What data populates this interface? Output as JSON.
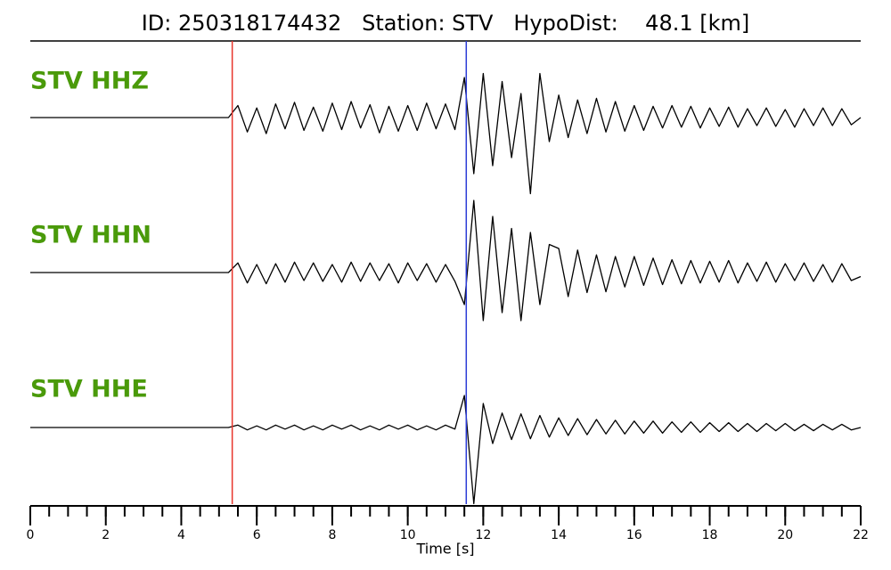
{
  "chart_data": {
    "type": "seismogram",
    "title": "ID: 250318174432   Station: STV   HypoDist:    48.1 [km]",
    "x_label": "Time [s]",
    "xlim": [
      0,
      22
    ],
    "xticks": [
      0,
      2,
      4,
      6,
      8,
      10,
      12,
      14,
      16,
      18,
      20,
      22
    ],
    "xminorticks": [
      0,
      0.5,
      1,
      1.5,
      2,
      2.5,
      3,
      3.5,
      4,
      4.5,
      5,
      5.5,
      6,
      6.5,
      7,
      7.5,
      8,
      8.5,
      9,
      9.5,
      10,
      10.5,
      11,
      11.5,
      12,
      12.5,
      13,
      13.5,
      14,
      14.5,
      15,
      15.5,
      16,
      16.5,
      17,
      17.5,
      18,
      18.5,
      19,
      19.5,
      20,
      20.5,
      21,
      21.5,
      22
    ],
    "picks": [
      {
        "color": "#e8352b",
        "x": 5.35
      },
      {
        "color": "#2b3bd6",
        "x": 11.55
      }
    ],
    "x": [
      0,
      0.25,
      0.5,
      0.75,
      1,
      1.25,
      1.5,
      1.75,
      2,
      2.25,
      2.5,
      2.75,
      3,
      3.25,
      3.5,
      3.75,
      4,
      4.25,
      4.5,
      4.75,
      5,
      5.25,
      5.5,
      5.75,
      6,
      6.25,
      6.5,
      6.75,
      7,
      7.25,
      7.5,
      7.75,
      8,
      8.25,
      8.5,
      8.75,
      9,
      9.25,
      9.5,
      9.75,
      10,
      10.25,
      10.5,
      10.75,
      11,
      11.25,
      11.5,
      11.75,
      12,
      12.25,
      12.5,
      12.75,
      13,
      13.25,
      13.5,
      13.75,
      14,
      14.25,
      14.5,
      14.75,
      15,
      15.25,
      15.5,
      15.75,
      16,
      16.25,
      16.5,
      16.75,
      17,
      17.25,
      17.5,
      17.75,
      18,
      18.25,
      18.5,
      18.75,
      19,
      19.25,
      19.5,
      19.75,
      20,
      20.25,
      20.5,
      20.75,
      21,
      21.25,
      21.5,
      21.75,
      22
    ],
    "series": [
      {
        "name": "STV HHZ",
        "color": "#000000",
        "values": [
          0,
          0,
          0,
          0,
          0,
          0,
          0,
          0,
          0,
          0,
          0,
          0,
          0,
          0,
          0,
          0,
          0,
          0,
          0,
          0,
          0,
          0,
          0.15,
          -0.18,
          0.12,
          -0.2,
          0.17,
          -0.14,
          0.19,
          -0.16,
          0.13,
          -0.17,
          0.18,
          -0.15,
          0.2,
          -0.13,
          0.16,
          -0.19,
          0.14,
          -0.17,
          0.15,
          -0.16,
          0.18,
          -0.14,
          0.17,
          -0.15,
          0.5,
          -0.7,
          0.55,
          -0.6,
          0.45,
          -0.5,
          0.3,
          -0.95,
          0.55,
          -0.3,
          0.28,
          -0.25,
          0.22,
          -0.2,
          0.24,
          -0.18,
          0.2,
          -0.17,
          0.15,
          -0.16,
          0.14,
          -0.13,
          0.15,
          -0.12,
          0.14,
          -0.13,
          0.12,
          -0.11,
          0.13,
          -0.12,
          0.11,
          -0.1,
          0.12,
          -0.11,
          0.1,
          -0.12,
          0.11,
          -0.1,
          0.12,
          -0.1,
          0.11,
          -0.09,
          0
        ]
      },
      {
        "name": "STV HHN",
        "color": "#000000",
        "values": [
          0,
          0,
          0,
          0,
          0,
          0,
          0,
          0,
          0,
          0,
          0,
          0,
          0,
          0,
          0,
          0,
          0,
          0,
          0,
          0,
          0,
          0,
          0.12,
          -0.13,
          0.1,
          -0.14,
          0.11,
          -0.12,
          0.13,
          -0.1,
          0.12,
          -0.11,
          0.1,
          -0.12,
          0.13,
          -0.11,
          0.12,
          -0.1,
          0.11,
          -0.13,
          0.12,
          -0.1,
          0.11,
          -0.12,
          0.1,
          -0.11,
          -0.4,
          0.9,
          -0.6,
          0.7,
          -0.5,
          0.55,
          -0.6,
          0.5,
          -0.4,
          0.35,
          0.3,
          -0.3,
          0.28,
          -0.25,
          0.22,
          -0.24,
          0.2,
          -0.18,
          0.2,
          -0.16,
          0.18,
          -0.15,
          0.16,
          -0.14,
          0.15,
          -0.13,
          0.14,
          -0.12,
          0.15,
          -0.13,
          0.12,
          -0.11,
          0.13,
          -0.12,
          0.11,
          -0.1,
          0.12,
          -0.11,
          0.1,
          -0.12,
          0.11,
          -0.1,
          -0.05
        ]
      },
      {
        "name": "STV HHE",
        "color": "#000000",
        "values": [
          0,
          0,
          0,
          0,
          0,
          0,
          0,
          0,
          0,
          0,
          0,
          0,
          0,
          0,
          0,
          0,
          0,
          0,
          0,
          0,
          0,
          0,
          0.03,
          -0.03,
          0.02,
          -0.03,
          0.03,
          -0.02,
          0.03,
          -0.03,
          0.02,
          -0.03,
          0.03,
          -0.02,
          0.03,
          -0.03,
          0.02,
          -0.03,
          0.03,
          -0.02,
          0.03,
          -0.03,
          0.02,
          -0.03,
          0.03,
          -0.02,
          0.4,
          -0.95,
          0.3,
          -0.2,
          0.18,
          -0.15,
          0.17,
          -0.14,
          0.15,
          -0.12,
          0.12,
          -0.1,
          0.11,
          -0.09,
          0.1,
          -0.08,
          0.09,
          -0.08,
          0.08,
          -0.07,
          0.08,
          -0.07,
          0.07,
          -0.06,
          0.07,
          -0.06,
          0.06,
          -0.05,
          0.06,
          -0.05,
          0.05,
          -0.05,
          0.05,
          -0.04,
          0.05,
          -0.04,
          0.04,
          -0.04,
          0.04,
          -0.03,
          0.04,
          -0.03,
          0
        ]
      }
    ]
  }
}
